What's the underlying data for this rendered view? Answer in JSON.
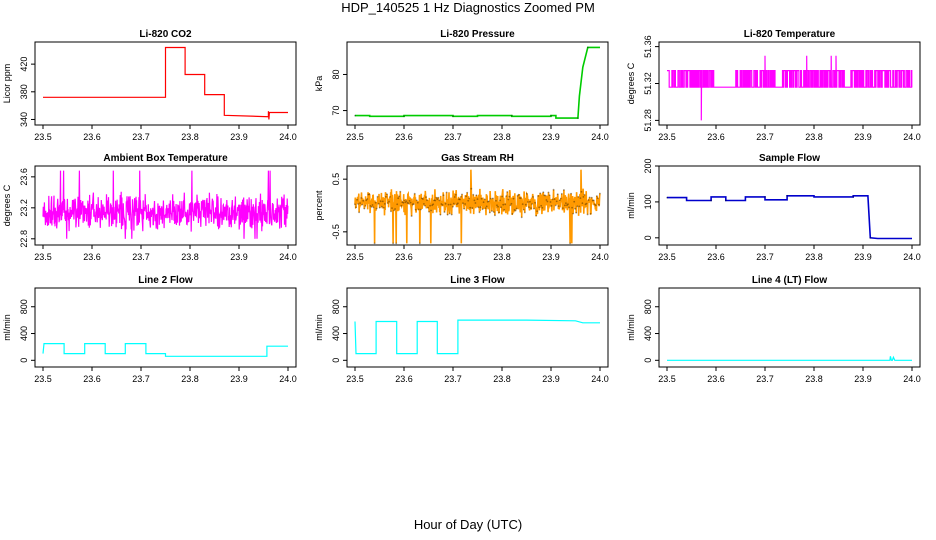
{
  "figure": {
    "title": "HDP_140525  1 Hz Diagnostics Zoomed PM",
    "xlabel": "Hour of Day (UTC)"
  },
  "chart_data": [
    {
      "type": "line",
      "title": "Li-820 CO2",
      "ylabel": "Licor ppm",
      "color": "#ff0000",
      "marker": false,
      "xlim": [
        23.5,
        24.0
      ],
      "ylim": [
        332,
        452
      ],
      "xticks": [
        "23.5",
        "23.6",
        "23.7",
        "23.8",
        "23.9",
        "24.0"
      ],
      "yticks": [
        "340",
        "380",
        "420"
      ],
      "series": [
        {
          "points": [
            [
              23.5,
              372
            ],
            [
              23.75,
              372
            ],
            [
              23.75,
              444
            ],
            [
              23.79,
              444
            ],
            [
              23.79,
              405
            ],
            [
              23.83,
              405
            ],
            [
              23.83,
              376
            ],
            [
              23.87,
              376
            ],
            [
              23.87,
              346
            ],
            [
              23.96,
              344
            ],
            [
              23.96,
              352
            ],
            [
              23.961,
              340
            ],
            [
              23.962,
              350
            ],
            [
              23.96,
              350
            ],
            [
              24.0,
              350
            ]
          ]
        }
      ]
    },
    {
      "type": "line",
      "title": "Li-820 Pressure",
      "ylabel": "kPa",
      "color": "#00cc00",
      "marker": true,
      "xlim": [
        23.5,
        24.0
      ],
      "ylim": [
        66,
        89
      ],
      "xticks": [
        "23.5",
        "23.6",
        "23.7",
        "23.8",
        "23.9",
        "24.0"
      ],
      "yticks": [
        "70",
        "80"
      ],
      "series": [
        {
          "points": [
            [
              23.5,
              68.6
            ],
            [
              23.53,
              68.6
            ],
            [
              23.53,
              68.4
            ],
            [
              23.6,
              68.4
            ],
            [
              23.6,
              68.6
            ],
            [
              23.7,
              68.6
            ],
            [
              23.7,
              68.4
            ],
            [
              23.75,
              68.4
            ],
            [
              23.75,
              68.6
            ],
            [
              23.82,
              68.6
            ],
            [
              23.82,
              68.4
            ],
            [
              23.9,
              68.4
            ],
            [
              23.9,
              68.6
            ],
            [
              23.91,
              68.6
            ],
            [
              23.91,
              67.9
            ],
            [
              23.955,
              67.9
            ],
            [
              23.958,
              74
            ],
            [
              23.965,
              82
            ],
            [
              23.975,
              87.5
            ],
            [
              24.0,
              87.5
            ]
          ]
        }
      ]
    },
    {
      "type": "line",
      "title": "Li-820 Temperature",
      "ylabel": "degrees C",
      "color": "#ff00ff",
      "marker": false,
      "noise": "binary",
      "xlim": [
        23.5,
        24.0
      ],
      "ylim": [
        51.275,
        51.365
      ],
      "xticks": [
        "23.5",
        "23.6",
        "23.7",
        "23.8",
        "23.9",
        "24.0"
      ],
      "yticks": [
        "51.28",
        "51.32",
        "51.36"
      ],
      "series": [
        {
          "low": 51.316,
          "high": 51.334,
          "spikes": [
            [
              23.57,
              51.28
            ],
            [
              23.7,
              51.35
            ],
            [
              23.785,
              51.35
            ],
            [
              23.835,
              51.35
            ],
            [
              23.845,
              51.35
            ]
          ],
          "gaps": [
            [
              23.595,
              23.64
            ],
            [
              23.72,
              23.735
            ],
            [
              23.865,
              23.875
            ]
          ]
        }
      ]
    },
    {
      "type": "line",
      "title": "Ambient Box Temperature",
      "ylabel": "degrees C",
      "color": "#ff00ff",
      "marker": false,
      "noise": "random",
      "xlim": [
        23.5,
        24.0
      ],
      "ylim": [
        22.72,
        23.74
      ],
      "xticks": [
        "23.5",
        "23.6",
        "23.7",
        "23.8",
        "23.9",
        "24.0"
      ],
      "yticks": [
        "22.8",
        "23.2",
        "23.6"
      ],
      "series": [
        {
          "center": 23.15,
          "amplitude": 0.27,
          "min": 22.8,
          "max": 23.68
        }
      ]
    },
    {
      "type": "line",
      "title": "Gas Stream RH",
      "ylabel": "percent",
      "color": "#ff9900",
      "marker": true,
      "noise": "random",
      "xlim": [
        23.5,
        24.0
      ],
      "ylim": [
        -0.75,
        0.75
      ],
      "xticks": [
        "23.5",
        "23.6",
        "23.7",
        "23.8",
        "23.9",
        "24.0"
      ],
      "yticks": [
        "-0.5",
        "0.5"
      ],
      "series": [
        {
          "center": 0.05,
          "amplitude": 0.28,
          "min": -0.72,
          "max": 0.68
        }
      ]
    },
    {
      "type": "line",
      "title": "Sample Flow",
      "ylabel": "ml/min",
      "color": "#0000cc",
      "marker": true,
      "xlim": [
        23.5,
        24.0
      ],
      "ylim": [
        -20,
        200
      ],
      "xticks": [
        "23.5",
        "23.6",
        "23.7",
        "23.8",
        "23.9",
        "24.0"
      ],
      "yticks": [
        "0",
        "100",
        "200"
      ],
      "series": [
        {
          "points": [
            [
              23.5,
              112
            ],
            [
              23.54,
              112
            ],
            [
              23.54,
              104
            ],
            [
              23.59,
              104
            ],
            [
              23.59,
              114
            ],
            [
              23.62,
              114
            ],
            [
              23.62,
              104
            ],
            [
              23.66,
              104
            ],
            [
              23.66,
              114
            ],
            [
              23.7,
              114
            ],
            [
              23.7,
              106
            ],
            [
              23.745,
              106
            ],
            [
              23.745,
              117
            ],
            [
              23.8,
              117
            ],
            [
              23.8,
              114
            ],
            [
              23.88,
              114
            ],
            [
              23.88,
              117
            ],
            [
              23.91,
              117
            ],
            [
              23.915,
              0
            ],
            [
              23.93,
              -2
            ],
            [
              24.0,
              -2
            ]
          ]
        }
      ]
    },
    {
      "type": "line",
      "title": "Line 2 Flow",
      "ylabel": "ml/min",
      "color": "#00ffff",
      "marker": false,
      "xlim": [
        23.5,
        24.0
      ],
      "ylim": [
        -100,
        1080
      ],
      "xticks": [
        "23.5",
        "23.6",
        "23.7",
        "23.8",
        "23.9",
        "24.0"
      ],
      "yticks": [
        "0",
        "400",
        "800"
      ],
      "series": [
        {
          "points": [
            [
              23.5,
              100
            ],
            [
              23.502,
              250
            ],
            [
              23.543,
              250
            ],
            [
              23.543,
              100
            ],
            [
              23.585,
              100
            ],
            [
              23.585,
              250
            ],
            [
              23.627,
              250
            ],
            [
              23.627,
              100
            ],
            [
              23.668,
              100
            ],
            [
              23.668,
              250
            ],
            [
              23.71,
              250
            ],
            [
              23.71,
              100
            ],
            [
              23.75,
              100
            ],
            [
              23.75,
              60
            ],
            [
              23.957,
              60
            ],
            [
              23.957,
              210
            ],
            [
              24.0,
              210
            ]
          ]
        }
      ]
    },
    {
      "type": "line",
      "title": "Line 3 Flow",
      "ylabel": "ml/min",
      "color": "#00ffff",
      "marker": false,
      "xlim": [
        23.5,
        24.0
      ],
      "ylim": [
        -100,
        1080
      ],
      "xticks": [
        "23.5",
        "23.6",
        "23.7",
        "23.8",
        "23.9",
        "24.0"
      ],
      "yticks": [
        "0",
        "400",
        "800"
      ],
      "series": [
        {
          "points": [
            [
              23.5,
              580
            ],
            [
              23.502,
              100
            ],
            [
              23.543,
              100
            ],
            [
              23.543,
              580
            ],
            [
              23.585,
              580
            ],
            [
              23.585,
              100
            ],
            [
              23.627,
              100
            ],
            [
              23.627,
              580
            ],
            [
              23.668,
              580
            ],
            [
              23.668,
              100
            ],
            [
              23.71,
              100
            ],
            [
              23.71,
              600
            ],
            [
              23.85,
              600
            ],
            [
              23.95,
              590
            ],
            [
              23.965,
              560
            ],
            [
              24.0,
              560
            ]
          ]
        }
      ]
    },
    {
      "type": "line",
      "title": "Line 4 (LT) Flow",
      "ylabel": "ml/min",
      "color": "#00ffff",
      "marker": false,
      "xlim": [
        23.5,
        24.0
      ],
      "ylim": [
        -100,
        1080
      ],
      "xticks": [
        "23.5",
        "23.6",
        "23.7",
        "23.8",
        "23.9",
        "24.0"
      ],
      "yticks": [
        "0",
        "400",
        "800"
      ],
      "series": [
        {
          "points": [
            [
              23.5,
              0
            ],
            [
              23.955,
              0
            ],
            [
              23.956,
              60
            ],
            [
              23.958,
              0
            ],
            [
              23.96,
              0
            ],
            [
              23.962,
              45
            ],
            [
              23.965,
              0
            ],
            [
              24.0,
              0
            ]
          ]
        }
      ]
    }
  ]
}
